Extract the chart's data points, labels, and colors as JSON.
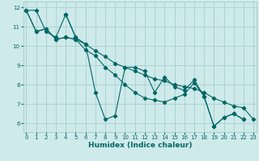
{
  "xlabel": "Humidex (Indice chaleur)",
  "background_color": "#ceeaea",
  "grid_color": "#aacece",
  "line_color": "#006666",
  "series": [
    {
      "x": [
        0,
        1,
        2,
        3,
        4,
        5,
        6,
        7,
        8,
        9,
        10,
        11,
        12,
        13,
        14,
        15,
        16,
        17,
        18,
        19,
        20,
        21,
        22,
        23
      ],
      "y": [
        11.85,
        11.85,
        10.75,
        10.45,
        11.65,
        10.45,
        null,
        null,
        null,
        null,
        null,
        null,
        null,
        null,
        null,
        null,
        null,
        null,
        null,
        null,
        null,
        null,
        null,
        null
      ]
    },
    {
      "x": [
        0,
        1,
        2,
        3,
        4,
        5,
        6,
        7,
        8,
        9,
        10,
        11,
        12,
        13,
        14,
        15,
        16,
        17,
        18,
        19,
        20,
        21,
        22,
        23
      ],
      "y": [
        11.85,
        10.75,
        10.9,
        10.35,
        10.45,
        10.35,
        10.1,
        9.75,
        9.45,
        9.1,
        8.9,
        8.7,
        8.5,
        8.3,
        8.2,
        8.0,
        7.9,
        7.8,
        7.6,
        7.3,
        7.1,
        6.9,
        6.8,
        6.2
      ]
    },
    {
      "x": [
        0,
        1,
        2,
        3,
        4,
        5,
        6,
        7,
        8,
        9,
        10,
        11,
        12,
        13,
        14,
        15,
        16,
        17,
        18,
        19,
        20,
        21,
        22,
        23
      ],
      "y": [
        11.85,
        10.75,
        10.9,
        10.35,
        10.45,
        10.35,
        9.8,
        9.5,
        8.9,
        8.5,
        8.0,
        7.6,
        7.3,
        7.2,
        7.1,
        7.3,
        7.5,
        8.1,
        7.4,
        5.85,
        6.3,
        6.5,
        6.2,
        null
      ]
    },
    {
      "x": [
        4,
        5,
        6,
        7,
        8,
        9,
        10,
        11,
        12,
        13,
        14,
        15,
        16,
        17,
        18,
        19,
        20,
        21,
        22,
        23
      ],
      "y": [
        11.65,
        10.45,
        10.1,
        7.6,
        6.2,
        6.4,
        8.9,
        8.9,
        8.7,
        7.6,
        8.4,
        7.9,
        7.7,
        8.25,
        7.4,
        5.85,
        6.3,
        6.5,
        6.2,
        null
      ]
    }
  ],
  "xlim": [
    -0.3,
    23.3
  ],
  "ylim": [
    5.55,
    12.3
  ],
  "yticks": [
    6,
    7,
    8,
    9,
    10,
    11,
    12
  ],
  "xticks": [
    0,
    1,
    2,
    3,
    4,
    5,
    6,
    7,
    8,
    9,
    10,
    11,
    12,
    13,
    14,
    15,
    16,
    17,
    18,
    19,
    20,
    21,
    22,
    23
  ],
  "marker": "D",
  "marker_size": 2.2,
  "linewidth": 0.8,
  "tick_fontsize": 5.0,
  "label_fontsize": 6.5,
  "label_fontweight": "bold"
}
